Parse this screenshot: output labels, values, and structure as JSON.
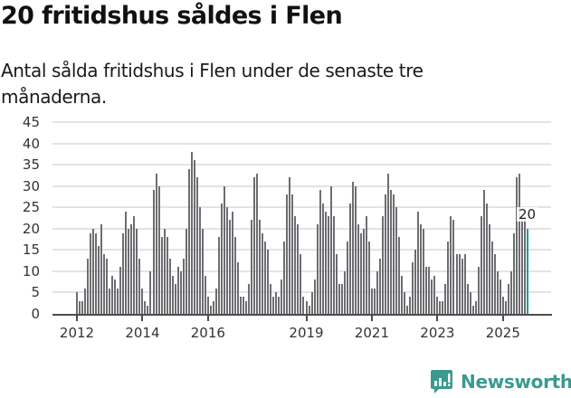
{
  "header": {
    "title": "20 fritidshus såldes i Flen",
    "subtitle": "Antal sålda fritidshus i Flen under de senaste tre månaderna."
  },
  "chart_data": {
    "type": "bar",
    "title": "20 fritidshus såldes i Flen",
    "subtitle": "Antal sålda fritidshus i Flen under de senaste tre månaderna.",
    "xlabel": "",
    "ylabel": "",
    "ylim": [
      0,
      45
    ],
    "yticks": [
      0,
      5,
      10,
      15,
      20,
      25,
      30,
      35,
      40,
      45
    ],
    "xtick_labels": [
      "2012",
      "2014",
      "2016",
      "2019",
      "2021",
      "2023",
      "2025"
    ],
    "grid": true,
    "legend": null,
    "start": "2012-01",
    "frequency": "monthly",
    "series": [
      {
        "name": "Sålda fritidshus",
        "values": [
          5,
          3,
          3,
          6,
          13,
          19,
          20,
          19,
          16,
          21,
          14,
          13,
          6,
          9,
          8,
          6,
          11,
          19,
          24,
          20,
          21,
          23,
          20,
          13,
          6,
          3,
          2,
          10,
          29,
          33,
          30,
          18,
          20,
          18,
          13,
          9,
          7,
          11,
          10,
          13,
          20,
          34,
          38,
          36,
          32,
          25,
          20,
          9,
          4,
          2,
          3,
          6,
          18,
          26,
          30,
          25,
          22,
          24,
          18,
          12,
          4,
          4,
          3,
          7,
          22,
          32,
          33,
          22,
          19,
          17,
          15,
          7,
          4,
          5,
          4,
          8,
          17,
          28,
          32,
          28,
          23,
          21,
          14,
          4,
          3,
          2,
          5,
          8,
          21,
          29,
          26,
          24,
          23,
          30,
          23,
          14,
          7,
          7,
          10,
          17,
          26,
          31,
          30,
          21,
          19,
          20,
          23,
          17,
          6,
          6,
          10,
          13,
          23,
          28,
          33,
          29,
          28,
          25,
          18,
          9,
          5,
          2,
          4,
          12,
          15,
          24,
          21,
          20,
          11,
          11,
          8,
          9,
          4,
          3,
          3,
          7,
          17,
          23,
          22,
          14,
          14,
          13,
          14,
          7,
          5,
          2,
          3,
          11,
          23,
          29,
          26,
          21,
          17,
          14,
          10,
          8,
          4,
          3,
          7,
          10,
          19,
          32,
          33,
          23,
          23,
          20
        ]
      }
    ],
    "highlight": {
      "index": 165,
      "label": "20",
      "color": "#1a9e96"
    },
    "bar_color": "#6e6d72"
  },
  "annotation": {
    "label": "20"
  },
  "footer": {
    "brand": "Newsworthy",
    "brand_color": "#3a9a8f"
  }
}
